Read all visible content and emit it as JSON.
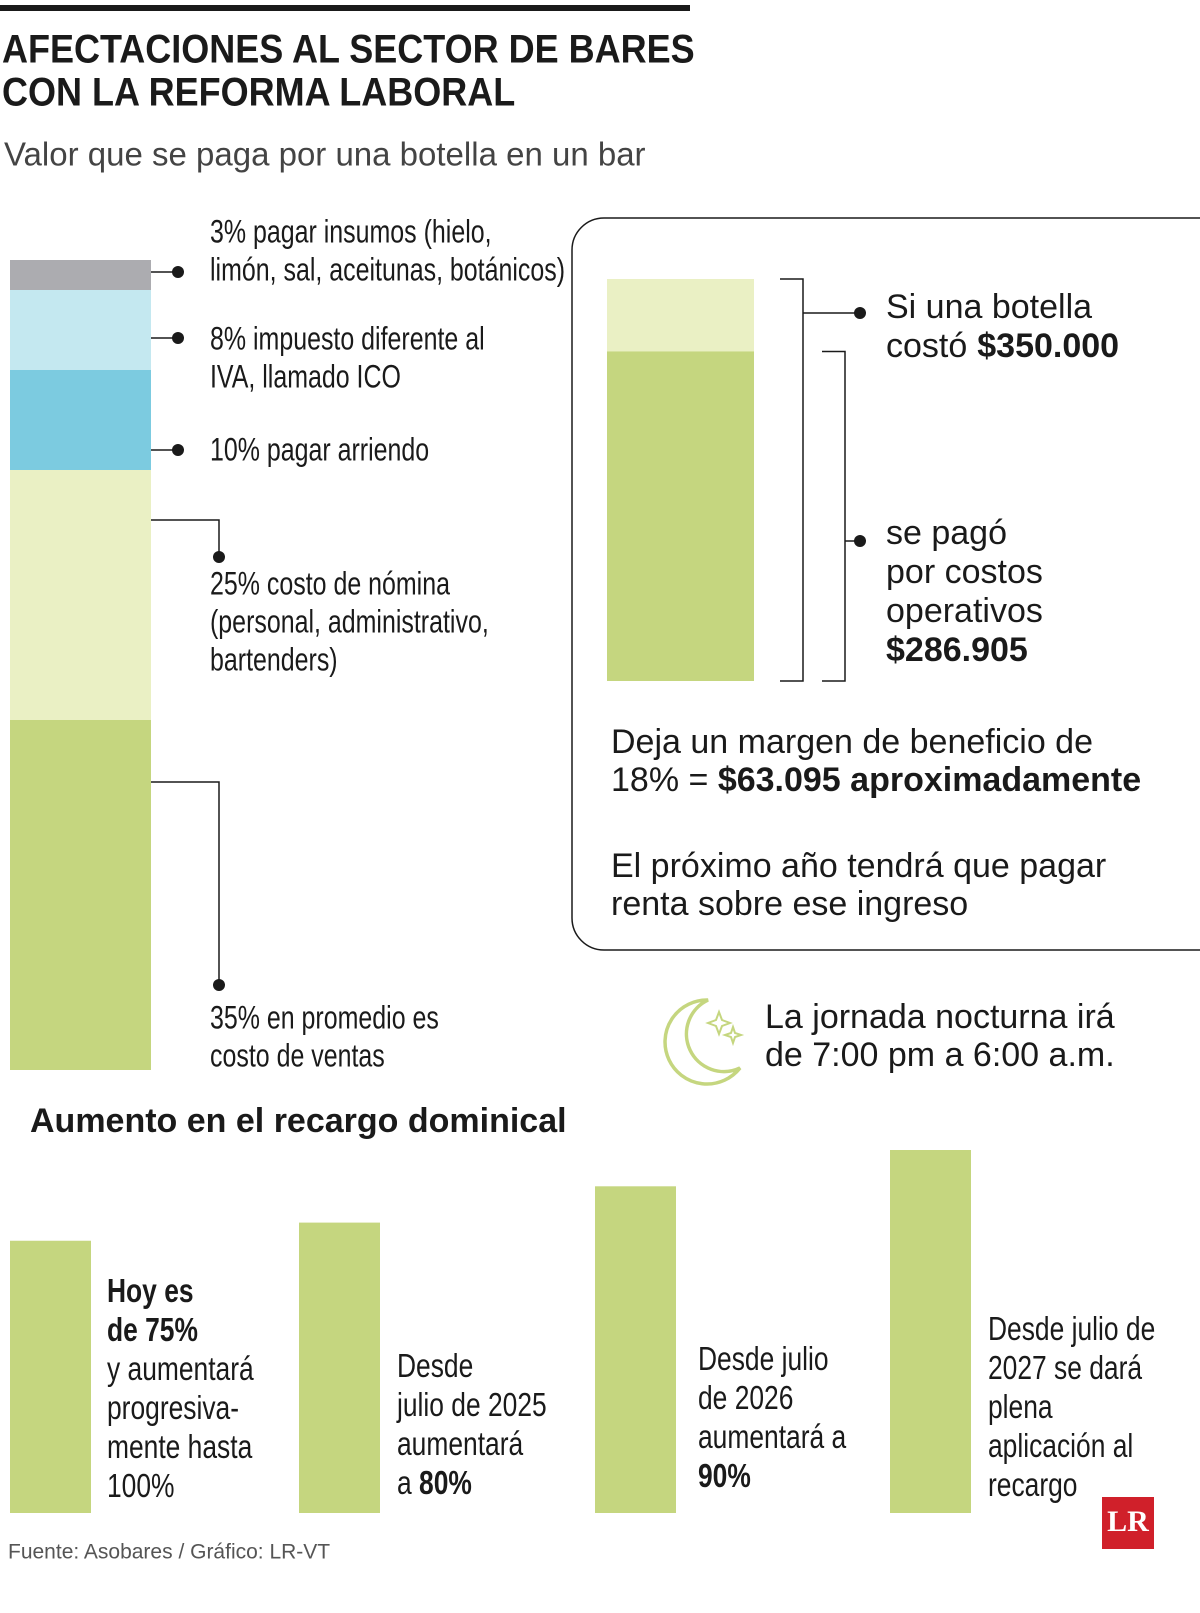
{
  "header": {
    "title_lines": [
      "AFECTACIONES AL SECTOR DE BARES",
      "CON LA REFORMA LABORAL"
    ],
    "subtitle": "Valor que se paga por una botella en un bar"
  },
  "chart_data": [
    {
      "type": "stacked-bar",
      "series": [
        {
          "label_lines": [
            "35% en promedio es",
            "costo de ventas"
          ],
          "values": [
            35
          ],
          "color": "#c5d67f"
        },
        {
          "label_lines": [
            "25% costo de nómina",
            "(personal, administrativo,",
            "bartenders)"
          ],
          "values": [
            25
          ],
          "color": "#eaf0c4"
        },
        {
          "label_lines": [
            "10% pagar arriendo"
          ],
          "values": [
            10
          ],
          "color": "#7ccbe0"
        },
        {
          "label_lines": [
            "8% impuesto diferente al",
            "IVA, llamado ICO"
          ],
          "values": [
            8
          ],
          "color": "#c4e8f0"
        },
        {
          "label_lines": [
            "3% pagar insumos (hielo,",
            "limón, sal, aceitunas, botánicos)"
          ],
          "values": [
            3
          ],
          "color": "#acacb0"
        }
      ]
    },
    {
      "type": "overlay-bar",
      "values": [
        350000,
        286905
      ],
      "value_labels": [
        "$350.000",
        "$286.905"
      ],
      "label_lines": [
        [
          "Si una botella",
          "costó"
        ],
        [
          "se pagó",
          "por costos",
          "operativos"
        ]
      ],
      "colors": [
        "#eaf0c4",
        "#c5d67f"
      ],
      "notes": [
        [
          [
            {
              "text": "Deja un margen de beneficio de"
            }
          ],
          [
            {
              "text": "18% = "
            },
            {
              "text": "$63.095 aproximadamente",
              "bold": true
            }
          ]
        ],
        [
          [
            {
              "text": "El próximo año tendrá que pagar"
            }
          ],
          [
            {
              "text": "renta sobre ese ingreso"
            }
          ]
        ]
      ],
      "night_lines": [
        "La jornada nocturna irá",
        "de 7:00 pm a 6:00 a.m."
      ]
    },
    {
      "type": "bar",
      "title": "Aumento en el recargo dominical",
      "values": [
        75,
        80,
        90,
        100
      ],
      "color": "#c5d67f",
      "label_lines": [
        [
          [
            {
              "text": "Hoy es",
              "bold": true
            }
          ],
          [
            {
              "text": "de 75%",
              "bold": true
            }
          ],
          [
            {
              "text": "y aumentará"
            }
          ],
          [
            {
              "text": "progresiva-"
            }
          ],
          [
            {
              "text": "mente hasta"
            }
          ],
          [
            {
              "text": "100%"
            }
          ]
        ],
        [
          [
            {
              "text": "Desde"
            }
          ],
          [
            {
              "text": "julio de 2025"
            }
          ],
          [
            {
              "text": "aumentará"
            }
          ],
          [
            {
              "text": "a "
            },
            {
              "text": "80%",
              "bold": true
            }
          ]
        ],
        [
          [
            {
              "text": "Desde julio"
            }
          ],
          [
            {
              "text": "de 2026"
            }
          ],
          [
            {
              "text": "aumentará a"
            }
          ],
          [
            {
              "text": "90%",
              "bold": true
            }
          ]
        ],
        [
          [
            {
              "text": "Desde julio de"
            }
          ],
          [
            {
              "text": "2027 se dará"
            }
          ],
          [
            {
              "text": "plena"
            }
          ],
          [
            {
              "text": "aplicación al"
            }
          ],
          [
            {
              "text": "recargo"
            }
          ]
        ]
      ]
    }
  ],
  "footer": {
    "source": "Fuente: Asobares / Gráfico: LR-VT",
    "logo": "LR"
  }
}
